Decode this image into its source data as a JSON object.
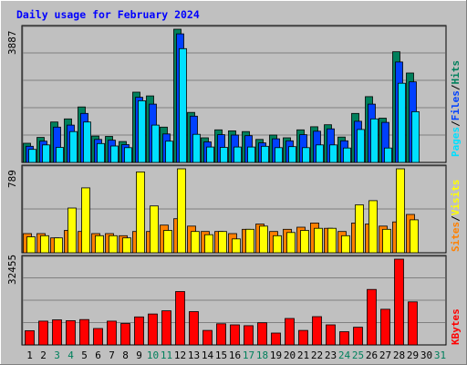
{
  "title": "Daily usage for February 2024",
  "colors": {
    "background": "#c0c0c0",
    "plot_bg": "#c0c0c0",
    "grid": "#808080",
    "border": "#808080",
    "title": "#0000ff",
    "hits": "#00805c",
    "files": "#0040ff",
    "pages": "#00e0ff",
    "visits": "#ffff00",
    "sites": "#ff8000",
    "kbytes": "#ff0000",
    "day_normal": "#000000",
    "day_weekend": "#00805c"
  },
  "side_labels": {
    "pages": "Pages",
    "files": "Files",
    "hits": "Hits",
    "sites": "Sites",
    "visits": "Visits",
    "kbytes": "KBytes",
    "sep": "/"
  },
  "chart_data": [
    {
      "type": "bar",
      "name": "hits-files-pages",
      "ymax_label": "3887",
      "ylim": [
        0,
        3887
      ],
      "grid": true,
      "categories": [
        "1",
        "2",
        "3",
        "4",
        "5",
        "6",
        "7",
        "8",
        "9",
        "10",
        "11",
        "12",
        "13",
        "14",
        "15",
        "16",
        "17",
        "18",
        "19",
        "20",
        "21",
        "22",
        "23",
        "24",
        "25",
        "26",
        "27",
        "28",
        "29",
        "30",
        "31"
      ],
      "series": [
        {
          "name": "Hits",
          "values": [
            560,
            730,
            1180,
            1270,
            1620,
            770,
            760,
            610,
            2050,
            1940,
            1030,
            3887,
            1460,
            720,
            950,
            920,
            900,
            670,
            800,
            720,
            950,
            1040,
            1100,
            740,
            1430,
            1920,
            1290,
            3230,
            2610,
            0,
            0
          ]
        },
        {
          "name": "Files",
          "values": [
            470,
            620,
            1030,
            1090,
            1430,
            670,
            650,
            520,
            1900,
            1700,
            830,
            3750,
            1350,
            600,
            810,
            800,
            780,
            570,
            690,
            630,
            810,
            910,
            980,
            630,
            1200,
            1700,
            1170,
            2930,
            2350,
            0,
            0
          ]
        },
        {
          "name": "Pages",
          "values": [
            380,
            510,
            440,
            900,
            1180,
            550,
            480,
            430,
            1800,
            1090,
            620,
            3320,
            820,
            450,
            440,
            450,
            450,
            470,
            430,
            460,
            430,
            510,
            510,
            420,
            960,
            1270,
            420,
            2310,
            1480,
            0,
            0
          ]
        }
      ]
    },
    {
      "type": "bar",
      "name": "visits-sites",
      "ymax_label": "789",
      "ylim": [
        0,
        789
      ],
      "grid": true,
      "categories": [
        "1",
        "2",
        "3",
        "4",
        "5",
        "6",
        "7",
        "8",
        "9",
        "10",
        "11",
        "12",
        "13",
        "14",
        "15",
        "16",
        "17",
        "18",
        "19",
        "20",
        "21",
        "22",
        "23",
        "24",
        "25",
        "26",
        "27",
        "28",
        "29",
        "30",
        "31"
      ],
      "series": [
        {
          "name": "Visits",
          "values": [
            150,
            160,
            140,
            420,
            610,
            160,
            160,
            140,
            760,
            440,
            210,
            800,
            200,
            170,
            200,
            130,
            220,
            250,
            160,
            190,
            210,
            230,
            230,
            160,
            450,
            490,
            220,
            800,
            310,
            0,
            0
          ]
        },
        {
          "name": "Sites",
          "values": [
            180,
            180,
            140,
            210,
            200,
            180,
            180,
            160,
            200,
            200,
            260,
            320,
            250,
            200,
            200,
            180,
            220,
            270,
            200,
            220,
            240,
            280,
            230,
            200,
            280,
            270,
            250,
            290,
            360,
            0,
            0
          ]
        }
      ]
    },
    {
      "type": "bar",
      "name": "kbytes",
      "ymax_label": "32455",
      "ylim": [
        0,
        32455
      ],
      "grid": true,
      "categories": [
        "1",
        "2",
        "3",
        "4",
        "5",
        "6",
        "7",
        "8",
        "9",
        "10",
        "11",
        "12",
        "13",
        "14",
        "15",
        "16",
        "17",
        "18",
        "19",
        "20",
        "21",
        "22",
        "23",
        "24",
        "25",
        "26",
        "27",
        "28",
        "29",
        "30",
        "31"
      ],
      "series": [
        {
          "name": "KBytes",
          "values": [
            5400,
            9000,
            9500,
            9200,
            9600,
            6200,
            9000,
            8100,
            10600,
            11700,
            12900,
            20200,
            12600,
            5500,
            8000,
            7600,
            7300,
            8400,
            4500,
            10000,
            5500,
            10700,
            7600,
            5000,
            6700,
            21000,
            13500,
            33600,
            16300,
            0,
            0
          ]
        }
      ]
    }
  ],
  "weekend_days": [
    "3",
    "4",
    "10",
    "11",
    "17",
    "18",
    "24",
    "25",
    "31"
  ]
}
